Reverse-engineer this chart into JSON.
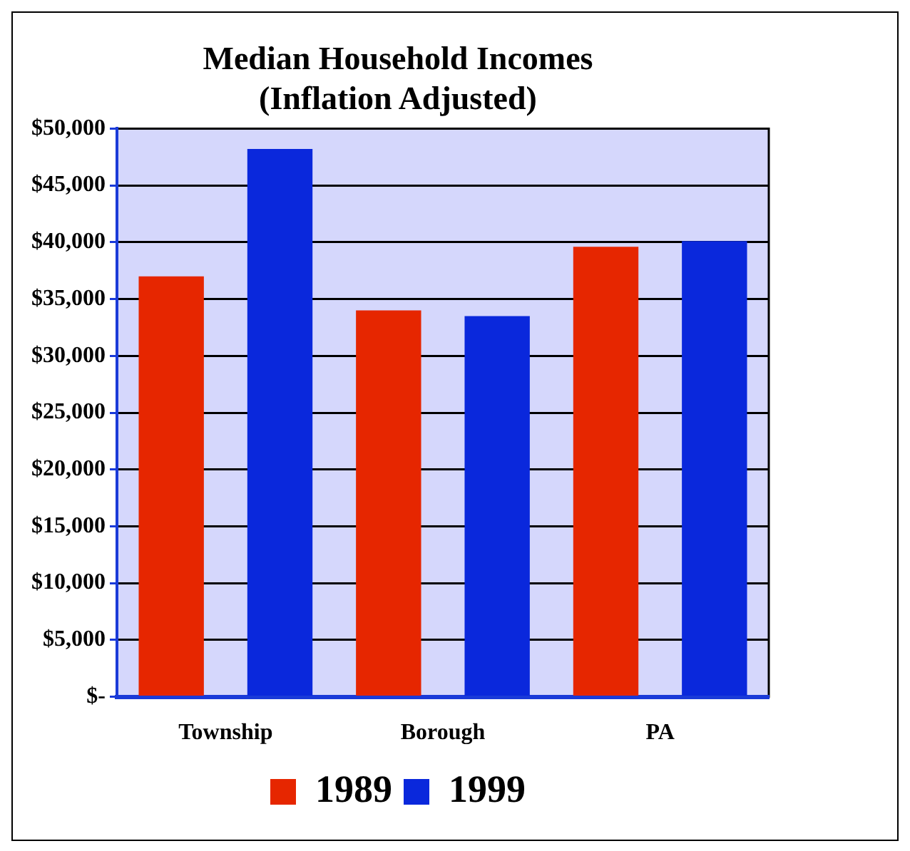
{
  "chart_data": {
    "type": "bar",
    "title": "Median Household Incomes\n(Inflation Adjusted)",
    "categories": [
      "Township",
      "Borough",
      "PA"
    ],
    "series": [
      {
        "name": "1989",
        "color": "#e62600",
        "values": [
          37000,
          34000,
          39600
        ]
      },
      {
        "name": "1999",
        "color": "#0a28dc",
        "values": [
          48200,
          33500,
          40100
        ]
      }
    ],
    "ylim": [
      0,
      50000
    ],
    "yticks": [
      {
        "value": 0,
        "label": "$-"
      },
      {
        "value": 5000,
        "label": "$5,000"
      },
      {
        "value": 10000,
        "label": "$10,000"
      },
      {
        "value": 15000,
        "label": "$15,000"
      },
      {
        "value": 20000,
        "label": "$20,000"
      },
      {
        "value": 25000,
        "label": "$25,000"
      },
      {
        "value": 30000,
        "label": "$30,000"
      },
      {
        "value": 35000,
        "label": "$35,000"
      },
      {
        "value": 40000,
        "label": "$40,000"
      },
      {
        "value": 45000,
        "label": "$45,000"
      },
      {
        "value": 50000,
        "label": "$50,000"
      }
    ],
    "grid": "y",
    "legend": "bottom"
  }
}
